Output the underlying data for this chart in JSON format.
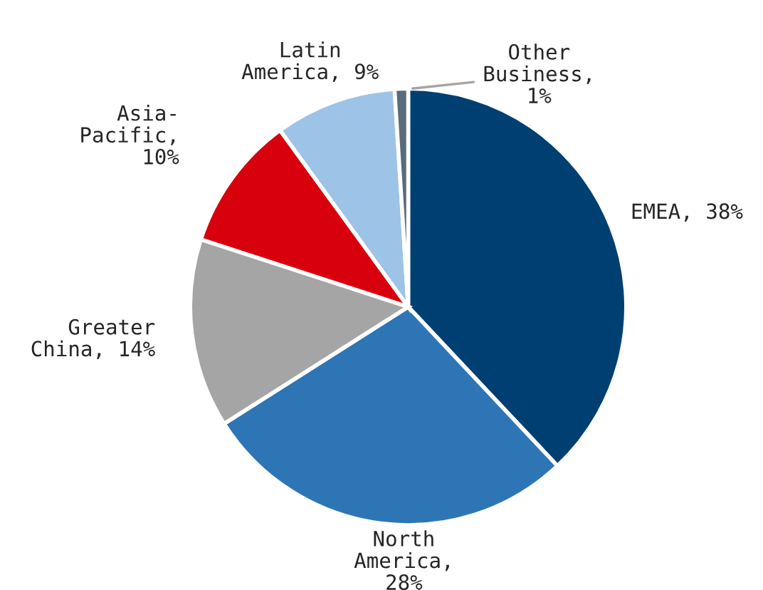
{
  "chart_data": {
    "type": "pie",
    "categories": [
      "EMEA, 38%",
      "North America, 28%",
      "Greater China, 14%",
      "Asia-Pacific, 10%",
      "Latin America, 9%",
      "Other Business, 1%"
    ],
    "values": [
      38,
      28,
      14,
      10,
      9,
      1
    ],
    "colors": [
      "#003f72",
      "#2e75b6",
      "#a5a5a5",
      "#d9000d",
      "#9dc3e6",
      "#5a6b7b"
    ],
    "legend": false
  }
}
